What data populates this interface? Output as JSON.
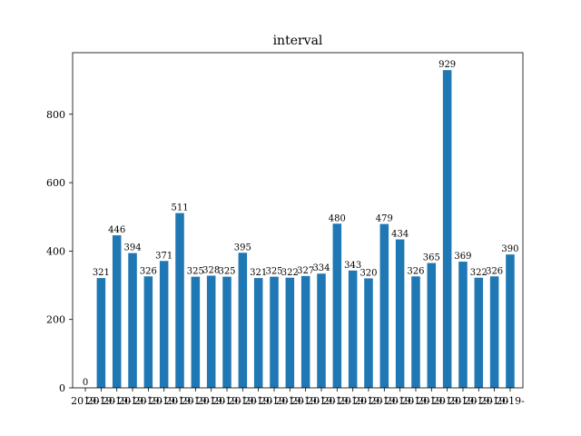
{
  "chart_data": {
    "type": "bar",
    "title": "interval",
    "xlabel": "",
    "ylabel": "",
    "ylim": [
      0,
      980
    ],
    "yticks": [
      0,
      200,
      400,
      600,
      800
    ],
    "grid": false,
    "bar_color": "#1f77b4",
    "x_tick_label_prefix": "2019",
    "values": [
      0,
      321,
      446,
      394,
      326,
      371,
      511,
      325,
      328,
      325,
      395,
      321,
      325,
      322,
      327,
      334,
      480,
      343,
      320,
      479,
      434,
      326,
      365,
      929,
      369,
      322,
      326,
      390
    ]
  }
}
